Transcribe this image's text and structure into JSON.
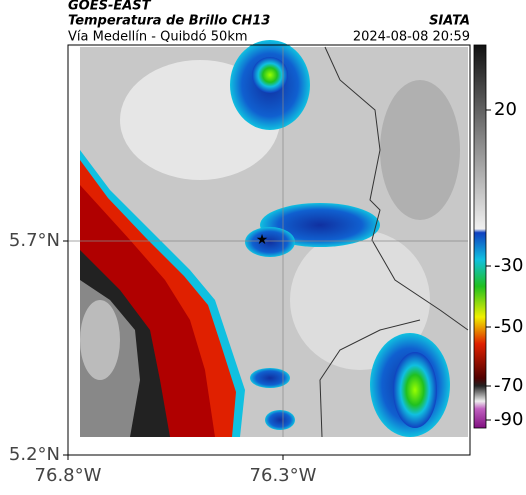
{
  "header": {
    "satellite": "GOES-EAST",
    "product": "Temperatura de Brillo CH13",
    "source": "SIATA",
    "route": "Vía Medellín - Quibdó 50km",
    "datetime": "2024-08-08 20:59"
  },
  "map": {
    "xticks": [
      "76.8°W",
      "76.3°W"
    ],
    "yticks": [
      "5.7°N",
      "5.2°N"
    ]
  },
  "colorbar": {
    "ticks": [
      "20",
      "-30",
      "-50",
      "-70",
      "-90"
    ]
  }
}
